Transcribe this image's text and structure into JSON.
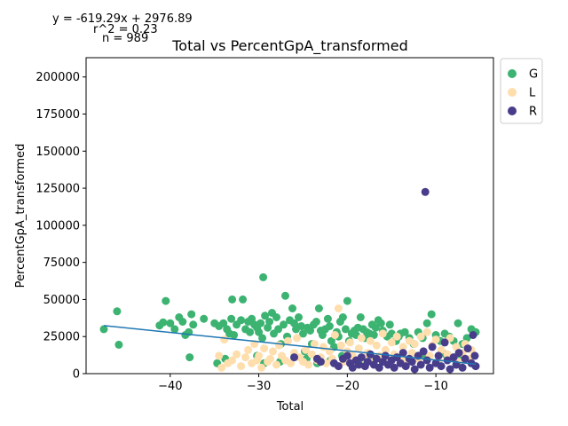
{
  "chart_data": {
    "type": "scatter",
    "title": "Total vs PercentGpA_transformed",
    "xlabel": "Total",
    "ylabel": "PercentGpA_transformed",
    "xlim": [
      -49.5,
      -3.5
    ],
    "ylim": [
      0,
      213000
    ],
    "xticks": [
      -40,
      -30,
      -20,
      -10
    ],
    "xtick_labels": [
      "−40",
      "−30",
      "−20",
      "−10"
    ],
    "yticks": [
      0,
      25000,
      50000,
      75000,
      100000,
      125000,
      150000,
      175000,
      200000
    ],
    "ytick_labels": [
      "0",
      "25000",
      "50000",
      "75000",
      "100000",
      "125000",
      "150000",
      "175000",
      "200000"
    ],
    "annotations": {
      "equation": "y = -619.29x + 2976.89",
      "r2": "r^2 = 0.23",
      "n": "n = 989"
    },
    "regression": {
      "slope": -619.29,
      "intercept": 2976.89,
      "x_range": [
        -47.5,
        -5.5
      ],
      "color": "#1f77b4"
    },
    "legend": {
      "placement": "upper right outside"
    },
    "series": [
      {
        "name": "G",
        "color": "#3cb371",
        "points": [
          [
            -47.5,
            30000
          ],
          [
            -46,
            42000
          ],
          [
            -45.8,
            19500
          ],
          [
            -41.2,
            32500
          ],
          [
            -40.8,
            34500
          ],
          [
            -40.5,
            49000
          ],
          [
            -40,
            34000
          ],
          [
            -39.5,
            30000
          ],
          [
            -39,
            38000
          ],
          [
            -38.6,
            35000
          ],
          [
            -38.3,
            26000
          ],
          [
            -37.9,
            28000
          ],
          [
            -37.6,
            40000
          ],
          [
            -37.4,
            33000
          ],
          [
            -37.8,
            11000
          ],
          [
            -36.2,
            37000
          ],
          [
            -35,
            34000
          ],
          [
            -34.5,
            32000
          ],
          [
            -34,
            34000
          ],
          [
            -33.6,
            30000
          ],
          [
            -33.3,
            27000
          ],
          [
            -33,
            50000
          ],
          [
            -33.1,
            37000
          ],
          [
            -32.8,
            26000
          ],
          [
            -32.5,
            33000
          ],
          [
            -32,
            36000
          ],
          [
            -31.8,
            50000
          ],
          [
            -31.5,
            30000
          ],
          [
            -31.2,
            35000
          ],
          [
            -31,
            28000
          ],
          [
            -30.8,
            37000
          ],
          [
            -30.5,
            33000
          ],
          [
            -30.2,
            31000
          ],
          [
            -30,
            28000
          ],
          [
            -29.8,
            34000
          ],
          [
            -29.6,
            24000
          ],
          [
            -29.5,
            65000
          ],
          [
            -29.3,
            39000
          ],
          [
            -29,
            31000
          ],
          [
            -28.8,
            35000
          ],
          [
            -28.5,
            41000
          ],
          [
            -28.3,
            27000
          ],
          [
            -28,
            38000
          ],
          [
            -27.8,
            30000
          ],
          [
            -27.5,
            20000
          ],
          [
            -27.2,
            33000
          ],
          [
            -27,
            52500
          ],
          [
            -26.8,
            25000
          ],
          [
            -26.5,
            36000
          ],
          [
            -26.2,
            44000
          ],
          [
            -26,
            34000
          ],
          [
            -25.8,
            30000
          ],
          [
            -25.5,
            38000
          ],
          [
            -25.2,
            32000
          ],
          [
            -25,
            27000
          ],
          [
            -24.8,
            15000
          ],
          [
            -24.5,
            31000
          ],
          [
            -24.2,
            29000
          ],
          [
            -24,
            20000
          ],
          [
            -23.8,
            33000
          ],
          [
            -23.5,
            35000
          ],
          [
            -23.2,
            44000
          ],
          [
            -23,
            29000
          ],
          [
            -22.8,
            26000
          ],
          [
            -22.5,
            30000
          ],
          [
            -22.2,
            37000
          ],
          [
            -22,
            32000
          ],
          [
            -21.8,
            22000
          ],
          [
            -21.5,
            18000
          ],
          [
            -21.2,
            28000
          ],
          [
            -21,
            25000
          ],
          [
            -20.8,
            35000
          ],
          [
            -20.5,
            38000
          ],
          [
            -20.2,
            30000
          ],
          [
            -20,
            49000
          ],
          [
            -19.8,
            22000
          ],
          [
            -19.5,
            27000
          ],
          [
            -19.2,
            29000
          ],
          [
            -19,
            26000
          ],
          [
            -18.8,
            31000
          ],
          [
            -18.5,
            38000
          ],
          [
            -18.2,
            30000
          ],
          [
            -18,
            24000
          ],
          [
            -17.8,
            28000
          ],
          [
            -17.5,
            27000
          ],
          [
            -17.2,
            33000
          ],
          [
            -17,
            26000
          ],
          [
            -16.8,
            31000
          ],
          [
            -16.5,
            36000
          ],
          [
            -16.2,
            34000
          ],
          [
            -16,
            29000
          ],
          [
            -15.5,
            25000
          ],
          [
            -15.2,
            33000
          ],
          [
            -15,
            27000
          ],
          [
            -14.5,
            22000
          ],
          [
            -14.2,
            25000
          ],
          [
            -14,
            27000
          ],
          [
            -13.5,
            28000
          ],
          [
            -13,
            24000
          ],
          [
            -12.5,
            20000
          ],
          [
            -12,
            28000
          ],
          [
            -11.5,
            24000
          ],
          [
            -11,
            34000
          ],
          [
            -10.5,
            40000
          ],
          [
            -10,
            26000
          ],
          [
            -9.5,
            22000
          ],
          [
            -9,
            27000
          ],
          [
            -8.5,
            25000
          ],
          [
            -8,
            22000
          ],
          [
            -7.5,
            34000
          ],
          [
            -7,
            20000
          ],
          [
            -6.5,
            24000
          ],
          [
            -6,
            30000
          ],
          [
            -5.5,
            28000
          ],
          [
            -34.7,
            7000
          ],
          [
            -33.8,
            10000
          ],
          [
            -30.2,
            12000
          ],
          [
            -29.4,
            7000
          ],
          [
            -27.6,
            8000
          ],
          [
            -24.6,
            10000
          ],
          [
            -23.4,
            7000
          ],
          [
            -21.9,
            9000
          ],
          [
            -20.6,
            12000
          ],
          [
            -18.7,
            8000
          ],
          [
            -16.9,
            10000
          ],
          [
            -13.6,
            9000
          ],
          [
            -11.4,
            12000
          ],
          [
            -8.9,
            13000
          ],
          [
            -7.2,
            11000
          ]
        ]
      },
      {
        "name": "L",
        "color": "#ffdead",
        "points": [
          [
            -34.5,
            12000
          ],
          [
            -34.2,
            4000
          ],
          [
            -33.9,
            23000
          ],
          [
            -33.5,
            7000
          ],
          [
            -33,
            9000
          ],
          [
            -32.5,
            13000
          ],
          [
            -32,
            5000
          ],
          [
            -31.5,
            11000
          ],
          [
            -31.2,
            16000
          ],
          [
            -30.8,
            7000
          ],
          [
            -30.5,
            20000
          ],
          [
            -30.2,
            9000
          ],
          [
            -30,
            12000
          ],
          [
            -29.7,
            4000
          ],
          [
            -29.4,
            17000
          ],
          [
            -29,
            8000
          ],
          [
            -28.7,
            10000
          ],
          [
            -28.4,
            15000
          ],
          [
            -28,
            6000
          ],
          [
            -27.7,
            19000
          ],
          [
            -27.4,
            12000
          ],
          [
            -27,
            9000
          ],
          [
            -26.7,
            22000
          ],
          [
            -26.4,
            7000
          ],
          [
            -26,
            14000
          ],
          [
            -25.7,
            24000
          ],
          [
            -25.4,
            11000
          ],
          [
            -25,
            8000
          ],
          [
            -24.7,
            16000
          ],
          [
            -24.4,
            6000
          ],
          [
            -24,
            13000
          ],
          [
            -23.7,
            20000
          ],
          [
            -23.4,
            9000
          ],
          [
            -23,
            11000
          ],
          [
            -22.7,
            18000
          ],
          [
            -22.4,
            7000
          ],
          [
            -22,
            15000
          ],
          [
            -21.7,
            10000
          ],
          [
            -21.4,
            26000
          ],
          [
            -21,
            44000
          ],
          [
            -20.7,
            19000
          ],
          [
            -20.4,
            8000
          ],
          [
            -20,
            15000
          ],
          [
            -19.7,
            21000
          ],
          [
            -19.4,
            12000
          ],
          [
            -19,
            9000
          ],
          [
            -18.7,
            17000
          ],
          [
            -18.4,
            24000
          ],
          [
            -18,
            10000
          ],
          [
            -17.7,
            14000
          ],
          [
            -17.4,
            22000
          ],
          [
            -17,
            8000
          ],
          [
            -16.7,
            19000
          ],
          [
            -16.4,
            12000
          ],
          [
            -16,
            27000
          ],
          [
            -15.7,
            16000
          ],
          [
            -15.4,
            9000
          ],
          [
            -15,
            21000
          ],
          [
            -14.7,
            13000
          ],
          [
            -14.4,
            25000
          ],
          [
            -14,
            11000
          ],
          [
            -13.7,
            18000
          ],
          [
            -13.4,
            8000
          ],
          [
            -13,
            22000
          ],
          [
            -12.7,
            14000
          ],
          [
            -12.4,
            20000
          ],
          [
            -12,
            10000
          ],
          [
            -11.7,
            25000
          ],
          [
            -11.4,
            15000
          ],
          [
            -11,
            28000
          ],
          [
            -10.7,
            12000
          ],
          [
            -10.4,
            19000
          ],
          [
            -10,
            23000
          ],
          [
            -9.7,
            9000
          ],
          [
            -9.4,
            16000
          ],
          [
            -9,
            21000
          ],
          [
            -8.7,
            13000
          ],
          [
            -8.4,
            24000
          ],
          [
            -8,
            11000
          ],
          [
            -7.7,
            18000
          ],
          [
            -7.4,
            8000
          ],
          [
            -7,
            14000
          ],
          [
            -6.7,
            20000
          ],
          [
            -6.4,
            10000
          ],
          [
            -6,
            16000
          ],
          [
            -5.7,
            12000
          ]
        ]
      },
      {
        "name": "R",
        "color": "#483d8b",
        "points": [
          [
            -26,
            11000
          ],
          [
            -23.4,
            10000
          ],
          [
            -23,
            8000
          ],
          [
            -21.5,
            7000
          ],
          [
            -21,
            5000
          ],
          [
            -20.5,
            10000
          ],
          [
            -20,
            12000
          ],
          [
            -19.7,
            7000
          ],
          [
            -19.4,
            4000
          ],
          [
            -19,
            9000
          ],
          [
            -18.7,
            6000
          ],
          [
            -18.4,
            11000
          ],
          [
            -18,
            5000
          ],
          [
            -17.7,
            8000
          ],
          [
            -17.4,
            13000
          ],
          [
            -17,
            6000
          ],
          [
            -16.7,
            10000
          ],
          [
            -16.4,
            4000
          ],
          [
            -16,
            8000
          ],
          [
            -15.7,
            12000
          ],
          [
            -15.4,
            6000
          ],
          [
            -15,
            9000
          ],
          [
            -14.7,
            4000
          ],
          [
            -14.4,
            11000
          ],
          [
            -14,
            7000
          ],
          [
            -13.7,
            14000
          ],
          [
            -13.4,
            5000
          ],
          [
            -13,
            10000
          ],
          [
            -12.7,
            8000
          ],
          [
            -12.4,
            3000
          ],
          [
            -12,
            12000
          ],
          [
            -11.7,
            6000
          ],
          [
            -11.4,
            15000
          ],
          [
            -11.2,
            122500
          ],
          [
            -11,
            9000
          ],
          [
            -10.7,
            4000
          ],
          [
            -10.4,
            18000
          ],
          [
            -10,
            7000
          ],
          [
            -9.7,
            12000
          ],
          [
            -9.4,
            5000
          ],
          [
            -9,
            21000
          ],
          [
            -8.7,
            9000
          ],
          [
            -8.4,
            3000
          ],
          [
            -8,
            11000
          ],
          [
            -7.7,
            6000
          ],
          [
            -7.4,
            14000
          ],
          [
            -7,
            4000
          ],
          [
            -6.7,
            10000
          ],
          [
            -6.4,
            17000
          ],
          [
            -6,
            7000
          ],
          [
            -5.8,
            26000
          ],
          [
            -5.6,
            12000
          ],
          [
            -5.5,
            5000
          ]
        ]
      }
    ]
  }
}
